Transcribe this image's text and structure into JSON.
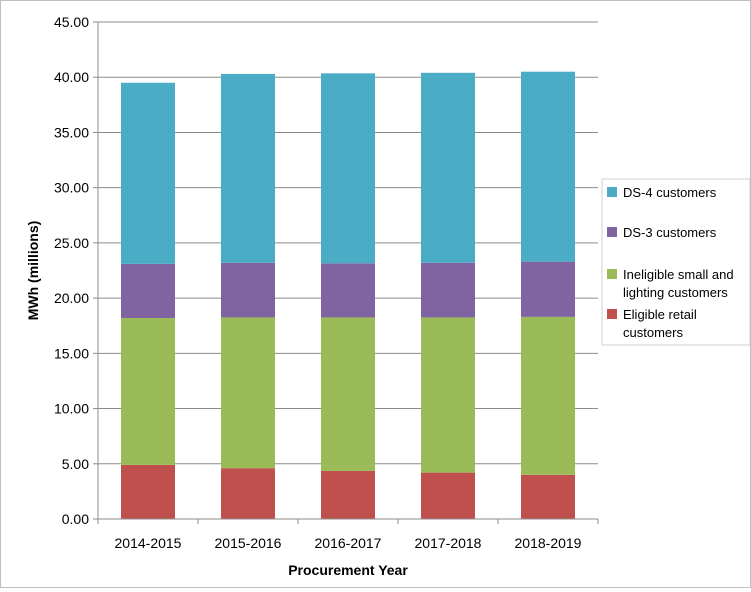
{
  "chart_data": {
    "type": "bar",
    "stacked": true,
    "title": "",
    "xlabel": "Procurement Year",
    "ylabel": "MWh (millions)",
    "ylim": [
      0,
      45
    ],
    "yticks": [
      "0.00",
      "5.00",
      "10.00",
      "15.00",
      "20.00",
      "25.00",
      "30.00",
      "35.00",
      "40.00",
      "45.00"
    ],
    "grid": true,
    "legend_position": "right",
    "categories": [
      "2014-2015",
      "2015-2016",
      "2016-2017",
      "2017-2018",
      "2018-2019"
    ],
    "series": [
      {
        "name": "Eligible retail customers",
        "color": "#c0504d",
        "values": [
          4.9,
          4.6,
          4.35,
          4.2,
          4.0
        ]
      },
      {
        "name": "Ineligible small and lighting customers",
        "color": "#9bbb59",
        "values": [
          13.3,
          13.65,
          13.9,
          14.05,
          14.3
        ]
      },
      {
        "name": "DS-3 customers",
        "color": "#8064a2",
        "values": [
          4.9,
          4.95,
          4.9,
          4.95,
          5.0
        ]
      },
      {
        "name": "DS-4 customers",
        "color": "#4bacc6",
        "values": [
          16.4,
          17.1,
          17.2,
          17.2,
          17.2
        ]
      }
    ],
    "legend": [
      {
        "lines": [
          "DS-4 customers"
        ],
        "color": "#4bacc6"
      },
      {
        "lines": [
          "DS-3 customers"
        ],
        "color": "#8064a2"
      },
      {
        "lines": [
          "Ineligible small and",
          "lighting customers"
        ],
        "color": "#9bbb59"
      },
      {
        "lines": [
          "Eligible retail",
          "customers"
        ],
        "color": "#c0504d"
      }
    ]
  }
}
